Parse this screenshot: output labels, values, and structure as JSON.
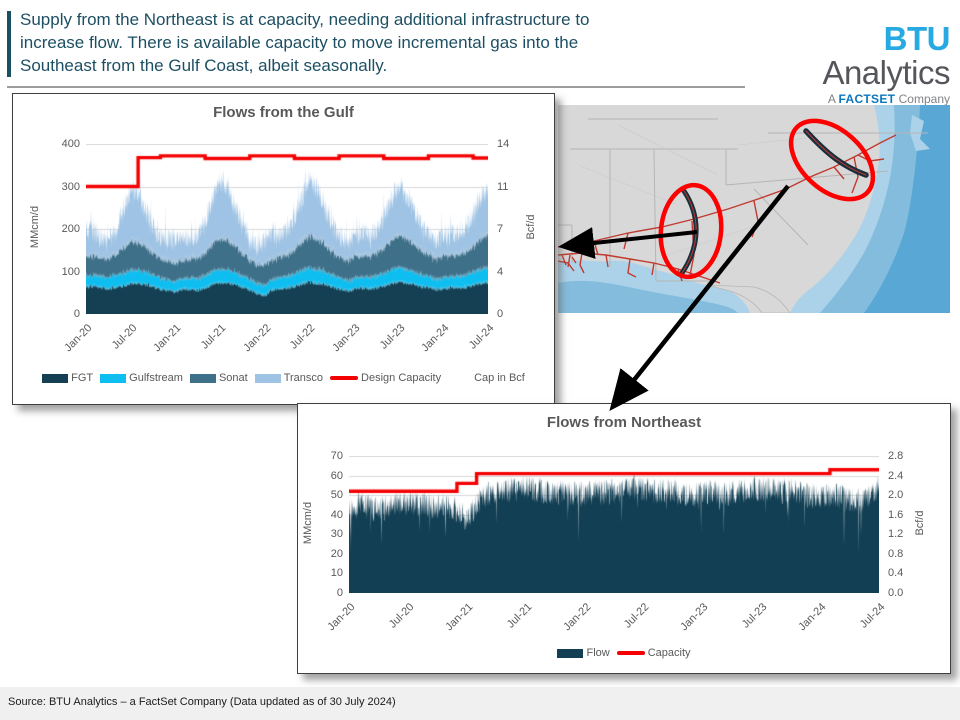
{
  "slide": {
    "title_lines": [
      "Supply from the Northeast is at capacity, needing additional infrastructure to",
      "increase flow. There is available capacity to move incremental gas into the",
      "Southeast from the Gulf Coast, albeit seasonally."
    ],
    "footer": "Source: BTU Analytics – a FactSet Company (Data updated as of 30 July 2024)",
    "logo": {
      "brand_bold": "BTU",
      "brand_rest": "Analytics",
      "tagline_prefix": "A ",
      "tagline_bold": "FACTSET",
      "tagline_suffix": " Company"
    },
    "colors": {
      "header_text": "#1d4f63",
      "accent_cyan": "#27aae1",
      "factset_blue": "#0b77be",
      "chart_text": "#595959",
      "grid": "#d9d9d9",
      "axis_line": "#bfbfbf"
    }
  },
  "map": {
    "colors": {
      "land": "#d8d8d8",
      "state_border": "#b5b5b5",
      "water_1": "#abd2e8",
      "water_2": "#84bcdd",
      "water_3": "#58a7d5",
      "pipeline_red": "#c03a30",
      "highlight_red": "#ff0000",
      "pipe_glyph": "#1a2e3c",
      "arrow": "#000000"
    }
  },
  "chart_data": [
    {
      "id": "gulf",
      "type": "area",
      "stacked": true,
      "title": "Flows from the Gulf",
      "ylabel_left": "MMcm/d",
      "ylabel_right": "Bcf/d",
      "ylim": [
        0,
        400
      ],
      "y_left_ticks": [
        "400",
        "300",
        "200",
        "100",
        "0"
      ],
      "y_right_ticks": [
        "14",
        "11",
        "7",
        "4",
        "0"
      ],
      "x_tick_indices": [
        0,
        6,
        12,
        18,
        24,
        30,
        36,
        42,
        48,
        54
      ],
      "x_tick_labels": [
        "Jan-20",
        "Jul-20",
        "Jan-21",
        "Jul-21",
        "Jan-22",
        "Jul-22",
        "Jan-23",
        "Jul-23",
        "Jan-24",
        "Jul-24"
      ],
      "note": "Cap in Bcf",
      "seed": 20240730,
      "series": [
        {
          "name": "FGT",
          "color": "#153f52",
          "noise": 6,
          "monthly": [
            65,
            66,
            62,
            60,
            63,
            68,
            72,
            73,
            70,
            65,
            60,
            56,
            52,
            60,
            58,
            57,
            62,
            70,
            74,
            73,
            70,
            64,
            58,
            50,
            44,
            58,
            60,
            62,
            65,
            72,
            75,
            74,
            70,
            65,
            60,
            55,
            58,
            62,
            60,
            62,
            66,
            73,
            76,
            74,
            70,
            66,
            62,
            58,
            60,
            63,
            62,
            64,
            68,
            74,
            76
          ]
        },
        {
          "name": "Gulfstream",
          "color": "#0ebef1",
          "noise": 4,
          "monthly": [
            24,
            25,
            26,
            27,
            28,
            30,
            31,
            30,
            29,
            27,
            25,
            24,
            23,
            24,
            26,
            27,
            29,
            31,
            32,
            31,
            29,
            27,
            25,
            23,
            24,
            25,
            26,
            28,
            30,
            32,
            33,
            32,
            30,
            28,
            26,
            24,
            24,
            25,
            26,
            28,
            30,
            32,
            33,
            32,
            30,
            28,
            26,
            24,
            25,
            26,
            27,
            29,
            31,
            33,
            34
          ]
        },
        {
          "name": "Sonat",
          "color": "#3f7089",
          "noise": 8,
          "monthly": [
            48,
            46,
            44,
            45,
            50,
            60,
            68,
            66,
            60,
            52,
            46,
            44,
            45,
            44,
            46,
            48,
            55,
            65,
            72,
            70,
            62,
            54,
            48,
            45,
            50,
            48,
            50,
            52,
            58,
            68,
            75,
            73,
            65,
            56,
            50,
            48,
            52,
            50,
            50,
            54,
            60,
            70,
            76,
            74,
            66,
            58,
            52,
            50,
            52,
            51,
            52,
            56,
            62,
            72,
            78
          ]
        },
        {
          "name": "Transco",
          "color": "#9fc3e4",
          "noise": 26,
          "spike": 55,
          "monthly": [
            55,
            60,
            45,
            40,
            55,
            85,
            120,
            112,
            85,
            60,
            45,
            50,
            60,
            55,
            45,
            50,
            70,
            100,
            135,
            122,
            90,
            65,
            50,
            45,
            55,
            60,
            50,
            55,
            75,
            105,
            128,
            118,
            88,
            62,
            48,
            42,
            50,
            55,
            48,
            52,
            70,
            95,
            112,
            105,
            82,
            58,
            45,
            40,
            48,
            52,
            50,
            58,
            72,
            95,
            102
          ]
        }
      ],
      "capacity": {
        "name": "Design Capacity",
        "color": "#f40000",
        "monthly": [
          300,
          300,
          300,
          300,
          300,
          300,
          300,
          368,
          368,
          368,
          372,
          372,
          372,
          372,
          372,
          372,
          366,
          366,
          366,
          366,
          366,
          366,
          372,
          372,
          372,
          372,
          372,
          372,
          366,
          366,
          366,
          366,
          366,
          366,
          372,
          372,
          372,
          372,
          372,
          372,
          366,
          366,
          366,
          366,
          366,
          366,
          372,
          372,
          372,
          372,
          372,
          372,
          367,
          367,
          367
        ]
      }
    },
    {
      "id": "northeast",
      "type": "area",
      "stacked": false,
      "title": "Flows from Northeast",
      "ylabel_left": "MMcm/d",
      "ylabel_right": "Bcf/d",
      "ylim": [
        0,
        70
      ],
      "y_left_ticks": [
        "70",
        "60",
        "50",
        "40",
        "30",
        "20",
        "10",
        "0"
      ],
      "y_right_ticks": [
        "2.8",
        "2.4",
        "2.0",
        "1.6",
        "1.2",
        "0.8",
        "0.4",
        "0.0"
      ],
      "x_tick_indices": [
        0,
        6,
        12,
        18,
        24,
        30,
        36,
        42,
        48,
        54
      ],
      "x_tick_labels": [
        "Jan-20",
        "Jul-20",
        "Jan-21",
        "Jul-21",
        "Jan-22",
        "Jul-22",
        "Jan-23",
        "Jul-23",
        "Jan-24",
        "Jul-24"
      ],
      "note": "",
      "seed": 7301,
      "series": [
        {
          "name": "Flow",
          "color": "#123f54",
          "noise": 7,
          "dip": 20,
          "monthly": [
            43,
            45,
            44,
            43,
            44,
            45,
            46,
            46,
            45,
            44,
            45,
            42,
            38,
            46,
            50,
            51,
            52,
            53,
            54,
            53,
            52,
            51,
            52,
            51,
            50,
            52,
            51,
            52,
            53,
            54,
            53,
            52,
            53,
            52,
            51,
            50,
            51,
            52,
            50,
            51,
            52,
            53,
            54,
            53,
            52,
            53,
            51,
            50,
            49,
            50,
            49,
            48,
            47,
            49,
            56
          ]
        }
      ],
      "capacity": {
        "name": "Capacity",
        "color": "#f40000",
        "monthly": [
          52,
          52,
          52,
          52,
          52,
          52,
          52,
          52,
          52,
          52,
          52,
          56,
          56,
          61,
          61,
          61,
          61,
          61,
          61,
          61,
          61,
          61,
          61,
          61,
          61,
          61,
          61,
          61,
          61,
          61,
          61,
          61,
          61,
          61,
          61,
          61,
          61,
          61,
          61,
          61,
          61,
          61,
          61,
          61,
          61,
          61,
          61,
          61,
          61,
          63,
          63,
          63,
          63,
          63,
          63
        ]
      }
    }
  ]
}
